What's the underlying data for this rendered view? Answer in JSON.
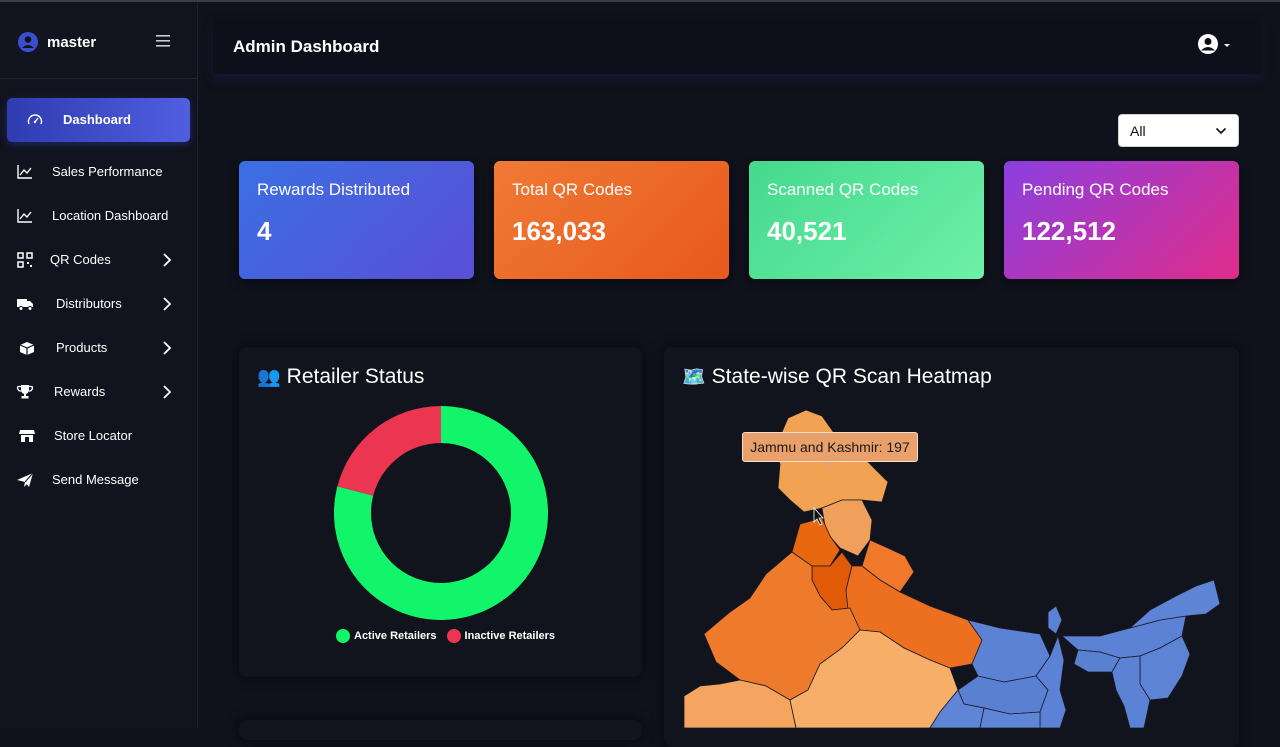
{
  "sidebar": {
    "brand": "master",
    "items": [
      {
        "label": "Dashboard",
        "icon": "gauge-icon"
      },
      {
        "label": "Sales Performance",
        "icon": "line-chart-icon"
      },
      {
        "label": "Location Dashboard",
        "icon": "line-chart-icon"
      },
      {
        "label": "QR Codes",
        "icon": "qr-grid-icon"
      },
      {
        "label": "Distributors",
        "icon": "truck-icon"
      },
      {
        "label": "Products",
        "icon": "box-icon"
      },
      {
        "label": "Rewards",
        "icon": "trophy-icon"
      },
      {
        "label": "Store Locator",
        "icon": "store-icon"
      },
      {
        "label": "Send Message",
        "icon": "paper-plane-icon"
      }
    ]
  },
  "header": {
    "title": "Admin Dashboard"
  },
  "filter": {
    "value": "All"
  },
  "stats": [
    {
      "title": "Rewards Distributed",
      "value": "4",
      "color_from": "#3b6fe3",
      "color_to": "#5a4fd6"
    },
    {
      "title": "Total QR Codes",
      "value": "163,033",
      "color_from": "#f07a35",
      "color_to": "#e8591c"
    },
    {
      "title": "Scanned QR Codes",
      "value": "40,521",
      "color_from": "#44d98e",
      "color_to": "#6ef0a8"
    },
    {
      "title": "Pending QR Codes",
      "value": "122,512",
      "color_from": "#8b3fe0",
      "color_to": "#e02c8a"
    }
  ],
  "retailer_panel": {
    "title": "Retailer Status",
    "emoji": "👥",
    "legend": [
      {
        "label": "Active Retailers",
        "color": "#12f56a"
      },
      {
        "label": "Inactive Retailers",
        "color": "#ec3550"
      }
    ]
  },
  "heatmap_panel": {
    "title": "State-wise QR Scan Heatmap",
    "emoji": "🗺️",
    "tooltip": "Jammu and Kashmir: 197"
  },
  "chart_data": {
    "type": "pie",
    "categories": [
      "Active Retailers",
      "Inactive Retailers"
    ],
    "values": [
      79,
      21
    ],
    "colors": [
      "#12f56a",
      "#ec3550"
    ],
    "donut": true,
    "legend": "bottom"
  }
}
